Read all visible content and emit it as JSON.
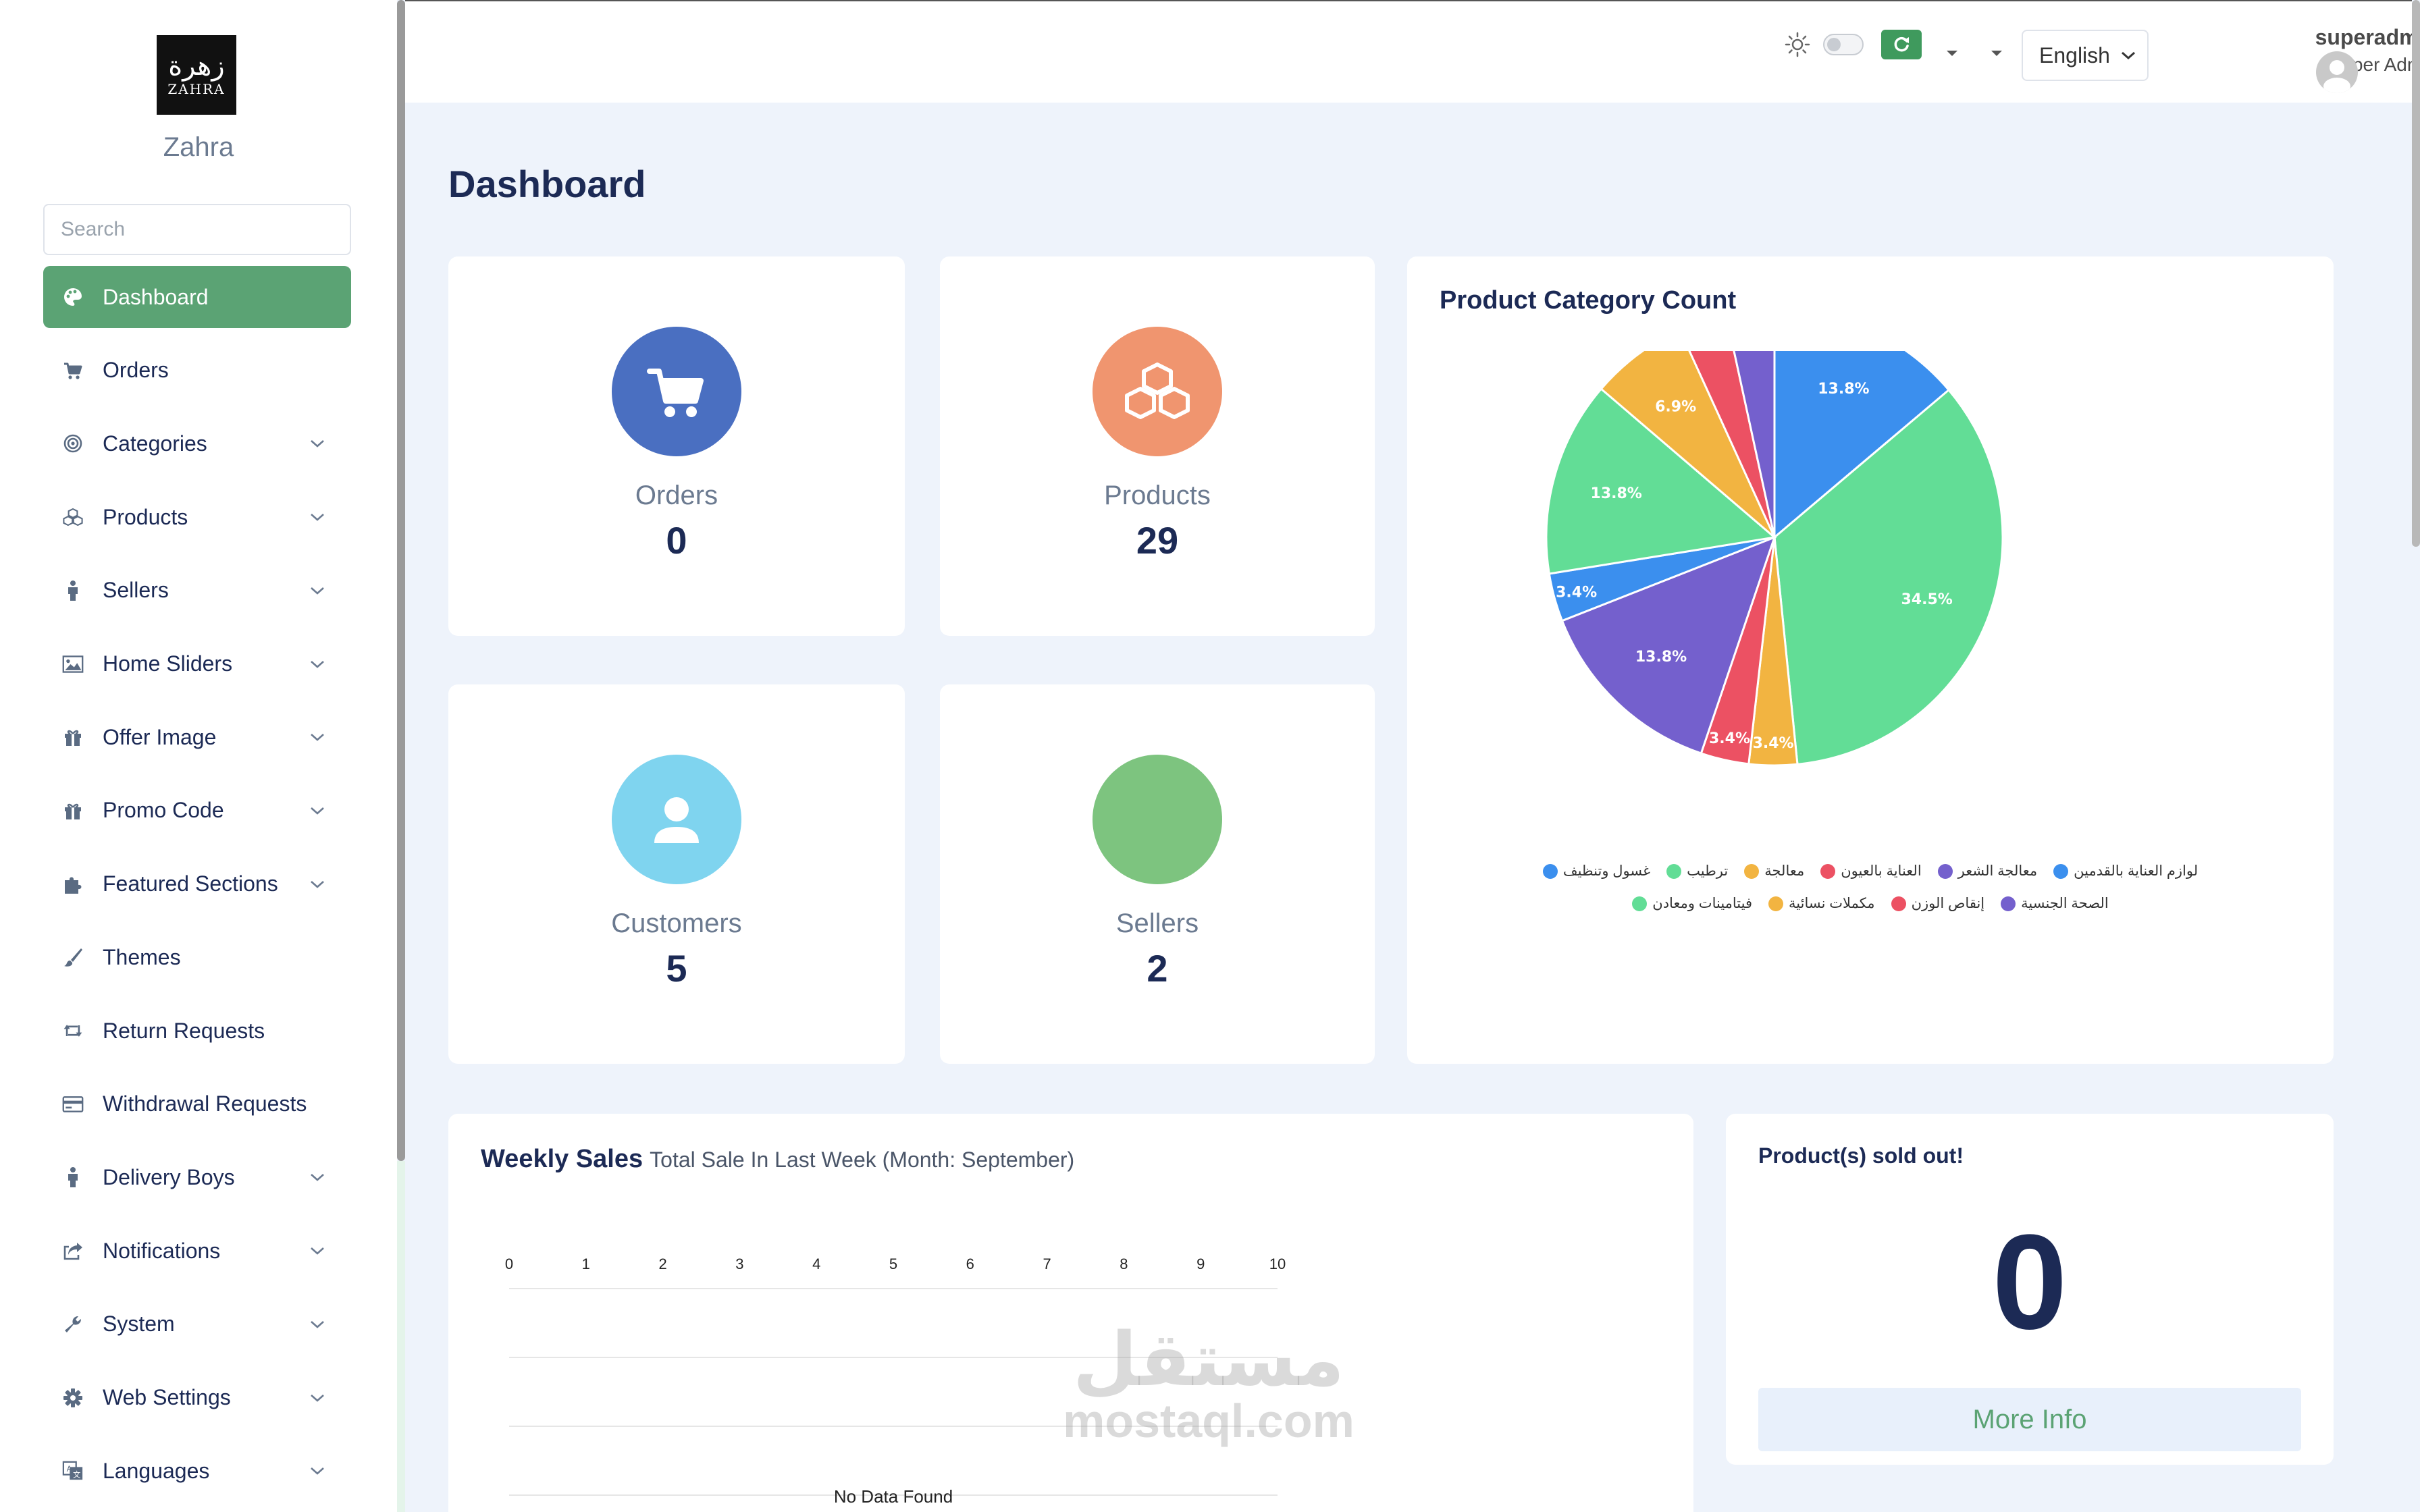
{
  "sidebar": {
    "logo_text": "زهرة",
    "logo_sub": "ZAHRA",
    "brand": "Zahra",
    "search_placeholder": "Search",
    "items": [
      {
        "label": "Dashboard",
        "icon": "palette-icon"
      },
      {
        "label": "Orders",
        "icon": "cart-icon"
      },
      {
        "label": "Categories",
        "icon": "target-icon"
      },
      {
        "label": "Products",
        "icon": "cubes-icon"
      },
      {
        "label": "Sellers",
        "icon": "person-icon"
      },
      {
        "label": "Home Sliders",
        "icon": "image-icon"
      },
      {
        "label": "Offer Image",
        "icon": "gift-icon"
      },
      {
        "label": "Promo Code",
        "icon": "gift-icon"
      },
      {
        "label": "Featured Sections",
        "icon": "puzzle-icon"
      },
      {
        "label": "Themes",
        "icon": "brush-icon"
      },
      {
        "label": "Return Requests",
        "icon": "retweet-icon"
      },
      {
        "label": "Withdrawal Requests",
        "icon": "credit-card-icon"
      },
      {
        "label": "Delivery Boys",
        "icon": "person-icon"
      },
      {
        "label": "Notifications",
        "icon": "share-icon"
      },
      {
        "label": "System",
        "icon": "wrench-icon"
      },
      {
        "label": "Web Settings",
        "icon": "gear-icon"
      },
      {
        "label": "Languages",
        "icon": "language-icon"
      }
    ]
  },
  "topbar": {
    "language": "English",
    "user_name": "superadmin",
    "user_role": "Super Admin"
  },
  "page_title": "Dashboard",
  "stats": {
    "orders": {
      "label": "Orders",
      "value": "0",
      "color": "#4a6fc1"
    },
    "products": {
      "label": "Products",
      "value": "29",
      "color": "#f0956f"
    },
    "customers": {
      "label": "Customers",
      "value": "5",
      "color": "#7fd4ef"
    },
    "sellers": {
      "label": "Sellers",
      "value": "2",
      "color": "#7dc47f"
    }
  },
  "category_chart": {
    "title": "Product Category Count"
  },
  "chart_data": [
    {
      "type": "pie",
      "title": "Product Category Count",
      "legend_position": "bottom",
      "slices": [
        {
          "name": "لوازم العناية بالقدمين",
          "value": 13.8,
          "label": "13.8%",
          "color": "#3b8fee"
        },
        {
          "name": "فيتامينات ومعادن",
          "value": 34.5,
          "label": "34.5%",
          "color": "#62dd96"
        },
        {
          "name": "مكملات نسائية",
          "value": 3.4,
          "label": "3.4%",
          "color": "#f2b441"
        },
        {
          "name": "إنقاص الوزن",
          "value": 3.4,
          "label": "3.4%",
          "color": "#ec5163"
        },
        {
          "name": "الصحة الجنسية",
          "value": 13.8,
          "label": "13.8%",
          "color": "#7460cd"
        },
        {
          "name": "غسول وتنظيف",
          "value": 3.4,
          "label": "3.4%",
          "color": "#3b8fee"
        },
        {
          "name": "ترطيب",
          "value": 13.8,
          "label": "13.8%",
          "color": "#62dd96"
        },
        {
          "name": "معالجة",
          "value": 6.9,
          "label": "6.9%",
          "color": "#f2b441"
        },
        {
          "name": "العناية بالعيون",
          "value": 3.4,
          "label": "3.4%",
          "color": "#ec5163"
        },
        {
          "name": "معالجة الشعر",
          "value": 3.4,
          "label": "3.4%",
          "color": "#7460cd"
        }
      ],
      "legend_rows": [
        [
          "غسول وتنظيف",
          "ترطيب",
          "معالجة",
          "العناية بالعيون",
          "معالجة الشعر",
          "لوازم العناية بالقدمين"
        ],
        [
          "فيتامينات ومعادن",
          "مكملات نسائية",
          "إنقاص الوزن",
          "الصحة الجنسية"
        ]
      ],
      "legend_colors": [
        [
          "#3b8fee",
          "#62dd96",
          "#f2b441",
          "#ec5163",
          "#7460cd",
          "#3b8fee"
        ],
        [
          "#62dd96",
          "#f2b441",
          "#ec5163",
          "#7460cd"
        ]
      ]
    },
    {
      "type": "bar",
      "title": "Weekly Sales",
      "subtitle": "Total Sale In Last Week (Month: September)",
      "x_ticks": [
        "0",
        "1",
        "2",
        "3",
        "4",
        "5",
        "6",
        "7",
        "8",
        "9",
        "10"
      ],
      "xlim": [
        0,
        10
      ],
      "series": [],
      "empty_message": "No Data Found"
    }
  ],
  "sold_out": {
    "title": "Product(s) sold out!",
    "value": "0",
    "button": "More Info"
  },
  "watermark": {
    "line1": "مستقل",
    "line2": "mostaql.com"
  }
}
